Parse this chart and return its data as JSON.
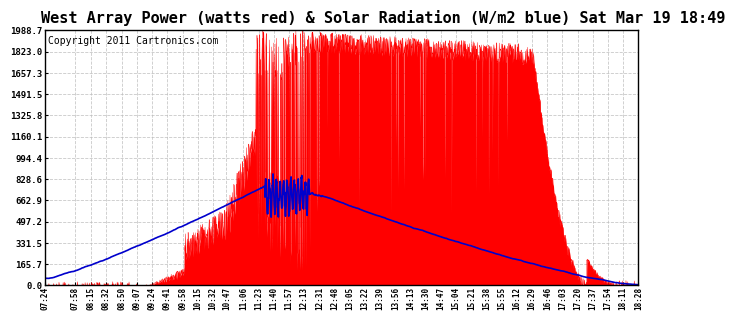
{
  "title": "West Array Power (watts red) & Solar Radiation (W/m2 blue) Sat Mar 19 18:49",
  "copyright": "Copyright 2011 Cartronics.com",
  "background_color": "#ffffff",
  "plot_bg_color": "#ffffff",
  "grid_color": "#bbbbbb",
  "y_ticks": [
    0.0,
    165.7,
    331.5,
    497.2,
    662.9,
    828.6,
    994.4,
    1160.1,
    1325.8,
    1491.5,
    1657.3,
    1823.0,
    1988.7
  ],
  "x_labels": [
    "07:24",
    "07:58",
    "08:15",
    "08:32",
    "08:50",
    "09:07",
    "09:24",
    "09:41",
    "09:58",
    "10:15",
    "10:32",
    "10:47",
    "11:06",
    "11:23",
    "11:40",
    "11:57",
    "12:13",
    "12:31",
    "12:48",
    "13:05",
    "13:22",
    "13:39",
    "13:56",
    "14:13",
    "14:30",
    "14:47",
    "15:04",
    "15:21",
    "15:38",
    "15:55",
    "16:12",
    "16:29",
    "16:46",
    "17:03",
    "17:20",
    "17:37",
    "17:54",
    "18:11",
    "18:28"
  ],
  "ymax": 1988.7,
  "red_color": "#ff0000",
  "blue_color": "#0000cc",
  "title_fontsize": 11,
  "copyright_fontsize": 7
}
